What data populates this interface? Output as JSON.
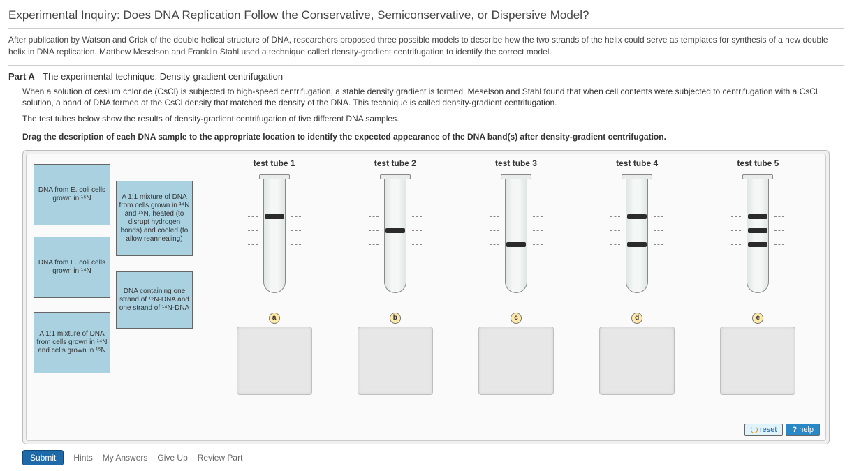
{
  "title": "Experimental Inquiry: Does DNA Replication Follow the Conservative, Semiconservative, or Dispersive Model?",
  "intro": "After publication by Watson and Crick of the double helical structure of DNA, researchers proposed three possible models to describe how the two strands of the helix could serve as templates for synthesis of a new double helix in DNA replication. Matthew Meselson and Franklin Stahl used a technique called density-gradient centrifugation to identify the correct model.",
  "part": {
    "label": "Part A",
    "title": "The experimental technique: Density-gradient centrifugation"
  },
  "part_text_1": "When a solution of cesium chloride (CsCl) is subjected to high-speed centrifugation, a stable density gradient is formed. Meselson and Stahl found that when cell contents were subjected to centrifugation with a CsCl solution, a band of DNA formed at the CsCl density that matched the density of the DNA. This technique is called density-gradient centrifugation.",
  "part_text_2": "The test tubes below show the results of density-gradient centrifugation of five different DNA samples.",
  "instruction": "Drag the description of each DNA sample to the appropriate location to identify the expected appearance of the DNA band(s) after density-gradient centrifugation.",
  "drag_items": [
    "DNA from E. coli cells grown in ¹⁵N",
    "A 1:1 mixture of DNA from cells grown in ¹⁴N and ¹⁵N, heated (to disrupt hydrogen bonds) and cooled (to allow reannealing)",
    "DNA from E. coli cells grown in ¹⁴N",
    "DNA containing one strand of ¹⁵N-DNA and one strand of ¹⁴N-DNA",
    "A 1:1 mixture of DNA from cells grown in ¹⁴N and cells grown in ¹⁵N"
  ],
  "tubes": [
    {
      "label": "test tube 1",
      "letter": "a",
      "bands": [
        60
      ],
      "ticks": [
        60,
        80,
        100
      ]
    },
    {
      "label": "test tube 2",
      "letter": "b",
      "bands": [
        80
      ],
      "ticks": [
        60,
        80,
        100
      ]
    },
    {
      "label": "test tube 3",
      "letter": "c",
      "bands": [
        100
      ],
      "ticks": [
        60,
        80,
        100
      ]
    },
    {
      "label": "test tube 4",
      "letter": "d",
      "bands": [
        60,
        100
      ],
      "ticks": [
        60,
        80,
        100
      ]
    },
    {
      "label": "test tube 5",
      "letter": "e",
      "bands": [
        60,
        80,
        100
      ],
      "ticks": [
        60,
        80,
        100
      ]
    }
  ],
  "buttons": {
    "reset": "reset",
    "help": "help",
    "submit": "Submit"
  },
  "links": {
    "hints": "Hints",
    "myanswers": "My Answers",
    "giveup": "Give Up",
    "review": "Review Part"
  },
  "colors": {
    "drag_bg": "#a9d1e0",
    "band": "#2b2b2b",
    "drop_bg": "#e7e7e7"
  }
}
